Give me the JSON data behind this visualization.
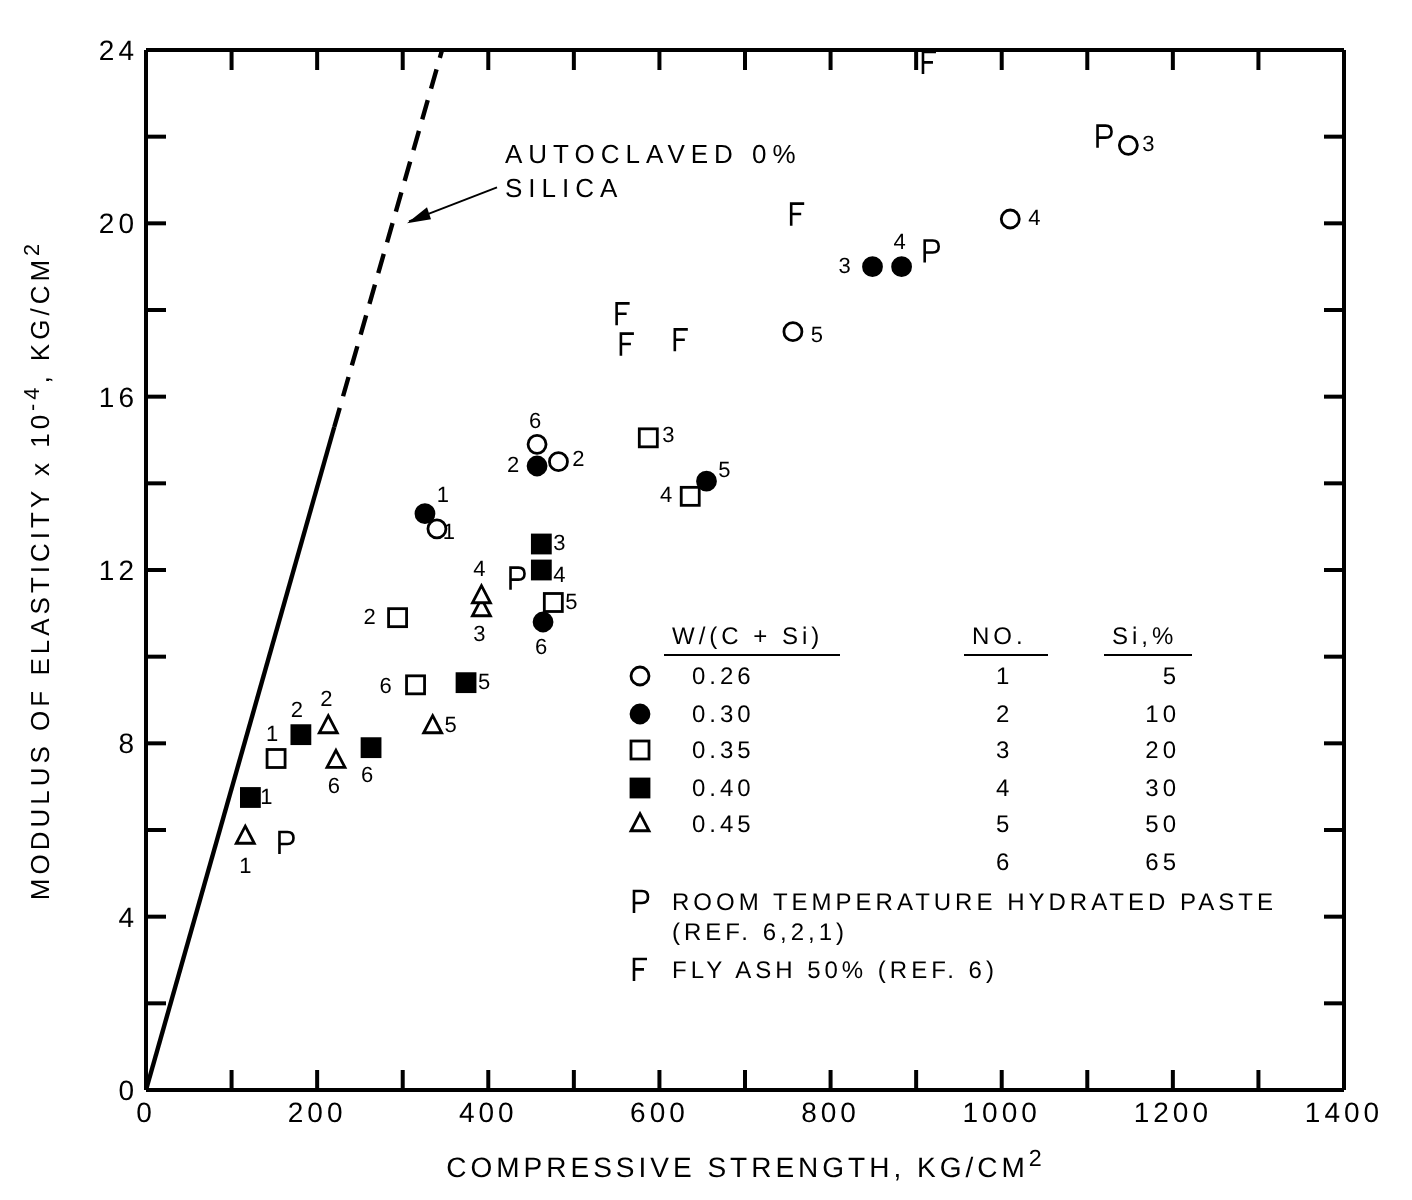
{
  "chart_data": {
    "type": "scatter",
    "xlabel": "COMPRESSIVE STRENGTH, KG/CM$^{2}$",
    "ylabel": "MODULUS OF ELASTICITY x 10$^{-4}$, KG/CM$^{2}$",
    "legend_title": "W/(C + Si)",
    "legend": "bottom right",
    "xlim": [
      0,
      1400
    ],
    "ylim": [
      0,
      24
    ],
    "xticks": [
      0,
      {
        "value": 100,
        "label": null
      },
      200,
      {
        "value": 300,
        "label": null
      },
      400,
      {
        "value": 500,
        "label": null
      },
      600,
      {
        "value": 700,
        "label": null
      },
      800,
      {
        "value": 900,
        "label": null
      },
      1000,
      {
        "value": 1100,
        "label": null
      },
      1200,
      {
        "value": 1300,
        "label": null
      },
      1400
    ],
    "yticks": [
      0,
      {
        "value": 2,
        "label": null
      },
      4,
      {
        "value": 6,
        "label": null
      },
      8,
      {
        "value": 10,
        "label": null
      },
      12,
      {
        "value": 14,
        "label": null
      },
      16,
      {
        "value": 18,
        "label": null
      },
      20,
      {
        "value": 22,
        "label": null
      },
      24
    ],
    "annotations": [
      {
        "text": "AUTOCLAVED 0% SILICA",
        "x": 298,
        "y": 20
      },
      {
        "text": "1",
        "x": 340,
        "y": 12.95
      },
      {
        "text": "6",
        "x": 457,
        "y": 14.9
      },
      {
        "text": "2",
        "x": 482,
        "y": 14.5
      },
      {
        "text": "5",
        "x": 756,
        "y": 17.5
      },
      {
        "text": "4",
        "x": 1010,
        "y": 20.1
      },
      {
        "text": "3",
        "x": 1148,
        "y": 21.8
      },
      {
        "text": "1",
        "x": 326,
        "y": 13.3
      },
      {
        "text": "2",
        "x": 457,
        "y": 14.4
      },
      {
        "text": "3",
        "x": 849,
        "y": 19.0
      },
      {
        "text": "4",
        "x": 883,
        "y": 19.0
      },
      {
        "text": "5",
        "x": 655,
        "y": 14.05
      },
      {
        "text": "6",
        "x": 464,
        "y": 10.8
      },
      {
        "text": "1",
        "x": 152,
        "y": 7.65
      },
      {
        "text": "2",
        "x": 294,
        "y": 10.9
      },
      {
        "text": "3",
        "x": 587,
        "y": 15.05
      },
      {
        "text": "4",
        "x": 636,
        "y": 13.7
      },
      {
        "text": "5",
        "x": 476,
        "y": 11.25
      },
      {
        "text": "6",
        "x": 315,
        "y": 9.35
      },
      {
        "text": "1",
        "x": 122,
        "y": 6.75
      },
      {
        "text": "2",
        "x": 181,
        "y": 8.2
      },
      {
        "text": "3",
        "x": 462,
        "y": 12.6
      },
      {
        "text": "4",
        "x": 462,
        "y": 12.0
      },
      {
        "text": "5",
        "x": 374,
        "y": 9.4
      },
      {
        "text": "6",
        "x": 263,
        "y": 7.9
      },
      {
        "text": "1",
        "x": 116,
        "y": 5.85
      },
      {
        "text": "2",
        "x": 213,
        "y": 8.4
      },
      {
        "text": "3",
        "x": 392,
        "y": 11.1
      },
      {
        "text": "4",
        "x": 392,
        "y": 11.4
      },
      {
        "text": "5",
        "x": 335,
        "y": 8.4
      },
      {
        "text": "6",
        "x": 222,
        "y": 7.6
      },
      "NO.",
      "Si,%",
      "1",
      "5",
      "2",
      "10",
      "3",
      "20",
      "4",
      "30",
      "5",
      "50",
      "6",
      "65"
    ],
    "series": [
      {
        "name": "0.26",
        "marker": "circle",
        "color": "#ffffff",
        "x": [
          340,
          457,
          482,
          756,
          1010,
          1148
        ],
        "values": [
          12.95,
          14.9,
          14.5,
          17.5,
          20.1,
          21.8
        ]
      },
      {
        "name": "0.30",
        "marker": "circle",
        "color": "#000000",
        "x": [
          326,
          457,
          849,
          883,
          655,
          464
        ],
        "values": [
          13.3,
          14.4,
          19.0,
          19.0,
          14.05,
          10.8
        ]
      },
      {
        "name": "0.35",
        "marker": "square",
        "color": "#ffffff",
        "x": [
          152,
          294,
          587,
          636,
          476,
          315
        ],
        "values": [
          7.65,
          10.9,
          15.05,
          13.7,
          11.25,
          9.35
        ]
      },
      {
        "name": "0.40",
        "marker": "square",
        "color": "#000000",
        "x": [
          122,
          181,
          462,
          462,
          374,
          263
        ],
        "values": [
          6.75,
          8.2,
          12.6,
          12.0,
          9.4,
          7.9
        ]
      },
      {
        "name": "0.45",
        "marker": "triangle",
        "color": "#ffffff",
        "x": [
          116,
          213,
          392,
          392,
          335,
          222
        ],
        "values": [
          5.85,
          8.4,
          11.1,
          11.4,
          8.4,
          7.6
        ]
      },
      {
        "name": "ROOM TEMPERATURE HYDRATED PASTE (REF. 6,2,1)",
        "marker": "cross",
        "color": "#000000",
        "x": [
          163,
          433,
          917,
          1119
        ],
        "values": [
          5.7,
          11.8,
          19.35,
          22.0
        ]
      },
      {
        "name": "FLY ASH 50% (REF. 6)",
        "marker": "cross",
        "color": "#000000",
        "x": [
          557,
          562,
          625,
          761,
          915
        ],
        "values": [
          17.9,
          17.2,
          17.3,
          20.2,
          23.7
        ]
      },
      {
        "type": "line",
        "marker": "none",
        "line_style": "solid",
        "color": "#000000",
        "x": [
          0,
          220
        ],
        "values": [
          0,
          15.3
        ]
      },
      {
        "type": "line",
        "marker": "none",
        "line_style": "dashed",
        "color": "#000000",
        "x": [
          220,
          346
        ],
        "values": [
          15.3,
          24
        ]
      }
    ]
  }
}
